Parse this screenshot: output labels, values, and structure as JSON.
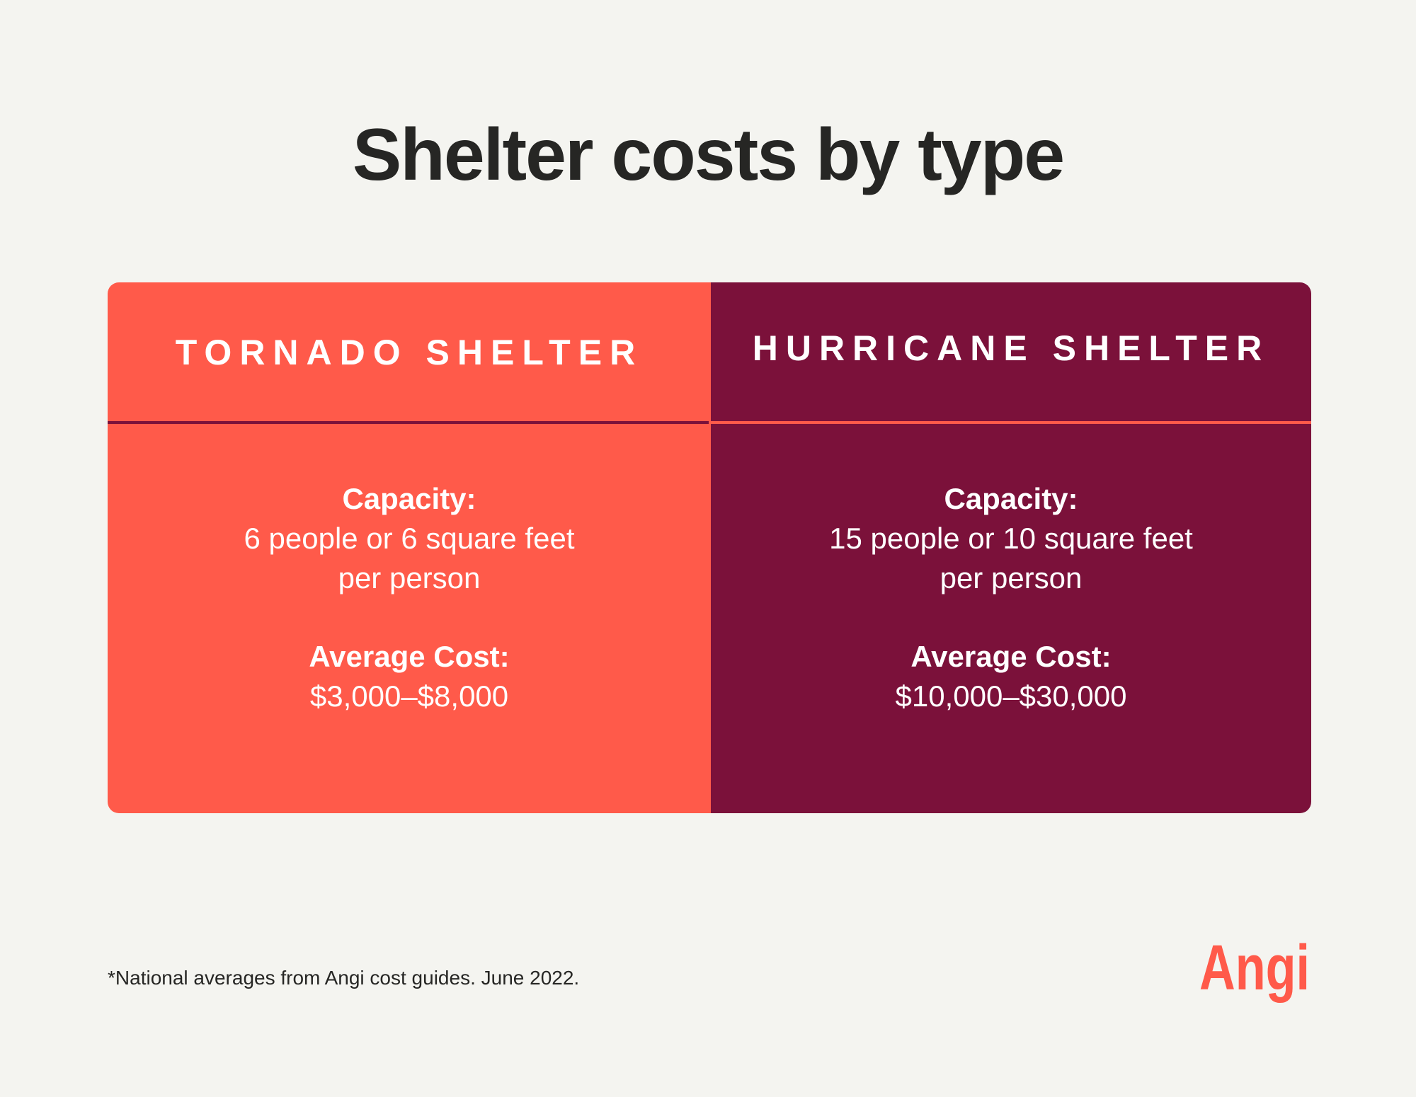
{
  "title": "Shelter costs by type",
  "columns": [
    {
      "header": "TORNADO SHELTER",
      "capacity_label": "Capacity:",
      "capacity_line1": "6 people or 6 square feet",
      "capacity_line2": "per person",
      "cost_label": "Average Cost:",
      "cost_value": "$3,000–$8,000"
    },
    {
      "header": "HURRICANE SHELTER",
      "capacity_label": "Capacity:",
      "capacity_line1": "15 people or 10 square feet",
      "capacity_line2": "per person",
      "cost_label": "Average Cost:",
      "cost_value": "$10,000–$30,000"
    }
  ],
  "footnote": "*National averages from Angi cost guides. June 2022.",
  "logo": "Angi",
  "colors": {
    "coral": "#ff5a4a",
    "maroon": "#7b113a",
    "background": "#f4f4f0"
  }
}
